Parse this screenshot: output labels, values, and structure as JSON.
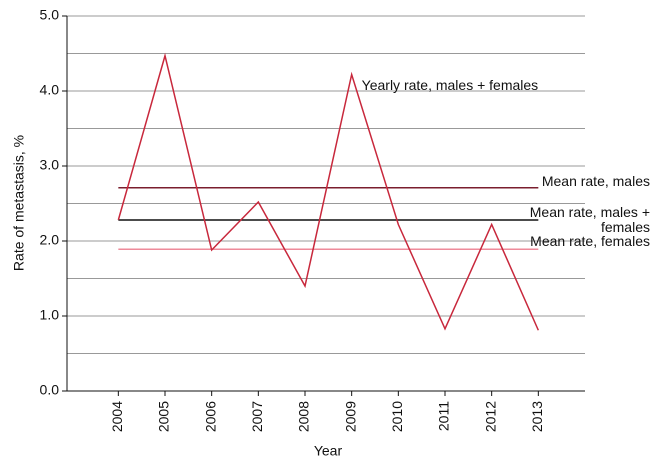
{
  "chart_data": {
    "type": "line",
    "x_label": "Year",
    "y_label": "Rate of metastasis, %",
    "x": [
      2004,
      2005,
      2006,
      2007,
      2008,
      2009,
      2010,
      2011,
      2012,
      2013
    ],
    "series": [
      {
        "name": "Yearly rate, males + females",
        "color": "#c8283c",
        "values": [
          2.28,
          4.47,
          1.88,
          2.52,
          1.4,
          4.22,
          2.22,
          0.83,
          2.22,
          0.81
        ]
      }
    ],
    "reference_lines": [
      {
        "name": "Mean rate, males",
        "value": 2.71,
        "color": "#7a1e2e"
      },
      {
        "name": "Mean rate, males + females",
        "value": 2.28,
        "color": "#111111"
      },
      {
        "name": "Mean rate, females",
        "value": 1.89,
        "color": "#ee8a9a"
      }
    ],
    "xlim": [
      2002.9,
      2014
    ],
    "xticks": [
      2004,
      2005,
      2006,
      2007,
      2008,
      2009,
      2010,
      2011,
      2012,
      2013
    ],
    "ylim": [
      0,
      5
    ],
    "yticks": [
      {
        "value": 0,
        "label": "0.0"
      },
      {
        "value": 1,
        "label": "1.0"
      },
      {
        "value": 2,
        "label": "2.0"
      },
      {
        "value": 3,
        "label": "3.0"
      },
      {
        "value": 4,
        "label": "4.0"
      },
      {
        "value": 5,
        "label": "5.0"
      }
    ],
    "minor_yticks": [
      0.5,
      1.5,
      2.5,
      3.5,
      4.5
    ],
    "grid": true
  }
}
